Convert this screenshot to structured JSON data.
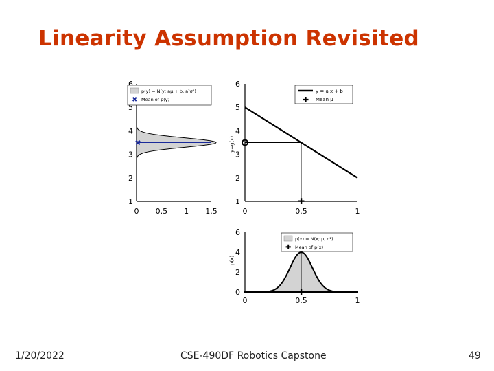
{
  "slide": {
    "title": "Linearity Assumption Revisited",
    "footer_date": "1/20/2022",
    "footer_course": "CSE-490DF Robotics Capstone",
    "page_number": "49"
  },
  "colors": {
    "title": "#cc3300",
    "fill": "#d3d3d3",
    "line": "#000000",
    "mean_marker": "#1a2a9a"
  },
  "chart_data": [
    {
      "type": "area",
      "orientation": "horizontal",
      "series": [
        {
          "name": "p(y) = N(y; aμ + b, a²σ²)",
          "mean": 3.5,
          "std": 0.2
        }
      ],
      "legend": [
        "p(y) = N(y; aμ + b, a²σ²)",
        "Mean of p(y)"
      ],
      "xlim": [
        0,
        1.5
      ],
      "ylim": [
        1,
        6
      ],
      "xticks": [
        "0",
        "0.5",
        "1",
        "1.5"
      ],
      "yticks": [
        "1",
        "2",
        "3",
        "4",
        "5",
        "6"
      ]
    },
    {
      "type": "line",
      "series": [
        {
          "name": "y = a x + b",
          "x": [
            0,
            1
          ],
          "y": [
            5,
            2
          ]
        }
      ],
      "mean_point": {
        "x": 0.5,
        "y": 3.5
      },
      "legend": [
        "y = a x + b",
        "Mean μ"
      ],
      "ylabel": "y=g(x)",
      "xlim": [
        0,
        1
      ],
      "ylim": [
        1,
        6
      ],
      "xticks": [
        "0",
        "0.5",
        "1"
      ],
      "yticks": [
        "1",
        "2",
        "3",
        "4",
        "5",
        "6"
      ]
    },
    {
      "type": "area",
      "series": [
        {
          "name": "p(x) = N(x; μ, σ²)",
          "mean": 0.5,
          "std": 0.1
        }
      ],
      "legend": [
        "p(x) = N(x; μ, σ²)",
        "Mean of p(x)"
      ],
      "ylabel": "p(x)",
      "xlim": [
        0,
        1
      ],
      "ylim": [
        0,
        6
      ],
      "xticks": [
        "0",
        "0.5",
        "1"
      ],
      "yticks": [
        "0",
        "2",
        "4",
        "6"
      ]
    }
  ]
}
